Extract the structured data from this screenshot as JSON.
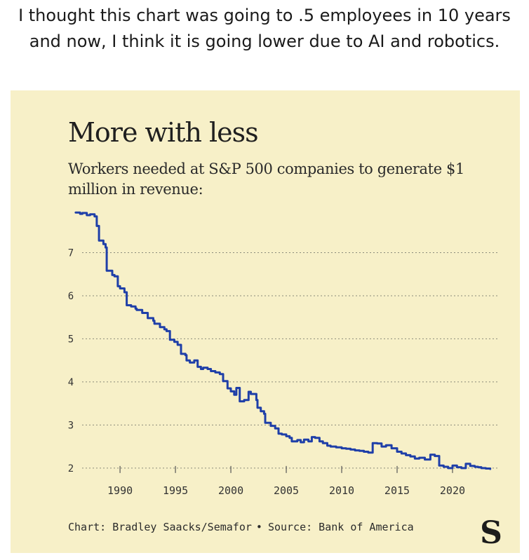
{
  "post": {
    "caption": "I thought this chart was going to .5 employees in 10 years and now, I think it is going lower due to AI and robotics."
  },
  "card": {
    "background": "#f7f0c8",
    "credit": "Chart: Bradley Saacks/Semafor",
    "separator": "•",
    "source": "Source: Bank of America",
    "logo_icon": "semafor-s-logo-icon"
  },
  "chart_data": {
    "type": "line",
    "title": "More with less",
    "subtitle": "Workers needed at S&P 500 companies to generate $1 million in revenue:",
    "xlabel": "",
    "ylabel": "",
    "xlim": [
      1985.5,
      2023.8
    ],
    "ylim": [
      1.9,
      8.0
    ],
    "x_ticks": [
      1990,
      1995,
      2000,
      2005,
      2010,
      2015,
      2020
    ],
    "y_ticks": [
      2,
      3,
      4,
      5,
      6,
      7
    ],
    "grid": "horizontal dotted",
    "legend": "none",
    "line_color": "#1f3fa8",
    "series": [
      {
        "x": [
          1986.0,
          1986.4,
          1986.6,
          1987.0,
          1987.3,
          1987.7,
          1987.9,
          1988.1,
          1988.5,
          1988.7,
          1988.8,
          1989.3,
          1989.5,
          1989.8,
          1990.0,
          1990.4,
          1990.6,
          1991.0,
          1991.4,
          1991.5,
          1992.0,
          1992.5,
          1993.0,
          1993.1,
          1993.6,
          1994.0,
          1994.2,
          1994.5,
          1994.9,
          1995.2,
          1995.5,
          1995.9,
          1996.0,
          1996.3,
          1996.7,
          1997.0,
          1997.3,
          1997.5,
          1997.9,
          1998.2,
          1998.6,
          1999.0,
          1999.3,
          1999.7,
          2000.0,
          2000.3,
          2000.5,
          2000.8,
          2001.2,
          2001.6,
          2001.8,
          2002.3,
          2002.4,
          2002.7,
          2003.0,
          2003.1,
          2003.6,
          2004.0,
          2004.3,
          2004.6,
          2005.0,
          2005.3,
          2005.5,
          2006.0,
          2006.3,
          2006.6,
          2007.0,
          2007.3,
          2007.6,
          2008.0,
          2008.3,
          2008.7,
          2009.0,
          2009.5,
          2010.0,
          2010.4,
          2010.8,
          2011.2,
          2011.6,
          2012.0,
          2012.4,
          2012.8,
          2013.2,
          2013.6,
          2014.0,
          2014.5,
          2015.0,
          2015.4,
          2015.8,
          2016.2,
          2016.6,
          2017.0,
          2017.5,
          2018.0,
          2018.4,
          2018.8,
          2019.2,
          2019.6,
          2020.0,
          2020.4,
          2020.8,
          2021.2,
          2021.6,
          2022.0,
          2022.3,
          2022.6,
          2023.0,
          2023.4
        ],
        "values": [
          7.93,
          7.9,
          7.92,
          7.87,
          7.89,
          7.84,
          7.62,
          7.28,
          7.2,
          7.12,
          6.58,
          6.48,
          6.45,
          6.22,
          6.17,
          6.08,
          5.78,
          5.75,
          5.7,
          5.67,
          5.6,
          5.48,
          5.42,
          5.35,
          5.27,
          5.22,
          5.18,
          4.98,
          4.93,
          4.86,
          4.65,
          4.62,
          4.5,
          4.45,
          4.5,
          4.35,
          4.3,
          4.33,
          4.3,
          4.25,
          4.22,
          4.18,
          4.02,
          3.85,
          3.78,
          3.7,
          3.86,
          3.55,
          3.58,
          3.77,
          3.72,
          3.58,
          3.4,
          3.32,
          3.26,
          3.05,
          2.98,
          2.92,
          2.8,
          2.78,
          2.74,
          2.7,
          2.62,
          2.65,
          2.6,
          2.66,
          2.62,
          2.72,
          2.7,
          2.62,
          2.58,
          2.52,
          2.5,
          2.48,
          2.46,
          2.45,
          2.43,
          2.41,
          2.4,
          2.38,
          2.36,
          2.58,
          2.57,
          2.5,
          2.53,
          2.46,
          2.38,
          2.34,
          2.3,
          2.27,
          2.22,
          2.24,
          2.2,
          2.31,
          2.28,
          2.06,
          2.03,
          2.0,
          2.06,
          2.02,
          2.0,
          2.1,
          2.05,
          2.03,
          2.02,
          2.0,
          1.99,
          1.98
        ]
      }
    ]
  }
}
